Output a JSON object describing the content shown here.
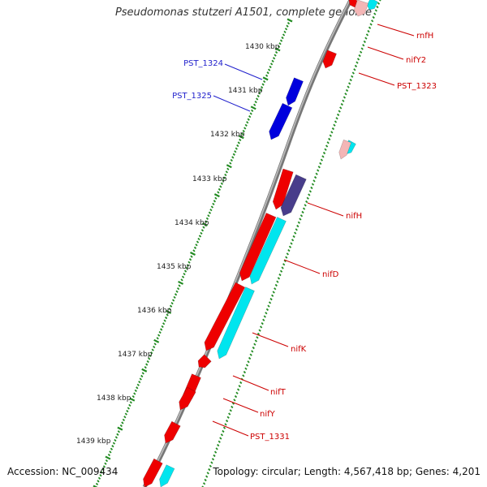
{
  "title": "Pseudomonas stutzeri A1501, complete genome",
  "footer": {
    "accession": "Accession: NC_009434",
    "summary": "Topology: circular; Length: 4,567,418 bp; Genes: 4,201"
  },
  "colors": {
    "forward_gene": "#ee0000",
    "cds": "#00e5ee",
    "blue_gene": "#0000dd",
    "purple_gene": "#483d8b",
    "backbone": "#8c8c8c",
    "tick": "#228b22",
    "label_red": "#cc0000",
    "label_blue": "#1f1fcc"
  },
  "scale_labels": [
    "1430 kbp",
    "1431 kbp",
    "1432 kbp",
    "1433 kbp",
    "1434 kbp",
    "1435 kbp",
    "1436 kbp",
    "1437 kbp",
    "1438 kbp",
    "1439 kbp"
  ],
  "gene_labels": [
    {
      "text": "rnfH",
      "color": "red"
    },
    {
      "text": "nifY2",
      "color": "red"
    },
    {
      "text": "PST_1323",
      "color": "red"
    },
    {
      "text": "PST_1324",
      "color": "blue"
    },
    {
      "text": "PST_1325",
      "color": "blue"
    },
    {
      "text": "nifH",
      "color": "red"
    },
    {
      "text": "nifD",
      "color": "red"
    },
    {
      "text": "nifK",
      "color": "red"
    },
    {
      "text": "nifT",
      "color": "red"
    },
    {
      "text": "nifY",
      "color": "red"
    },
    {
      "text": "PST_1331",
      "color": "red"
    }
  ]
}
